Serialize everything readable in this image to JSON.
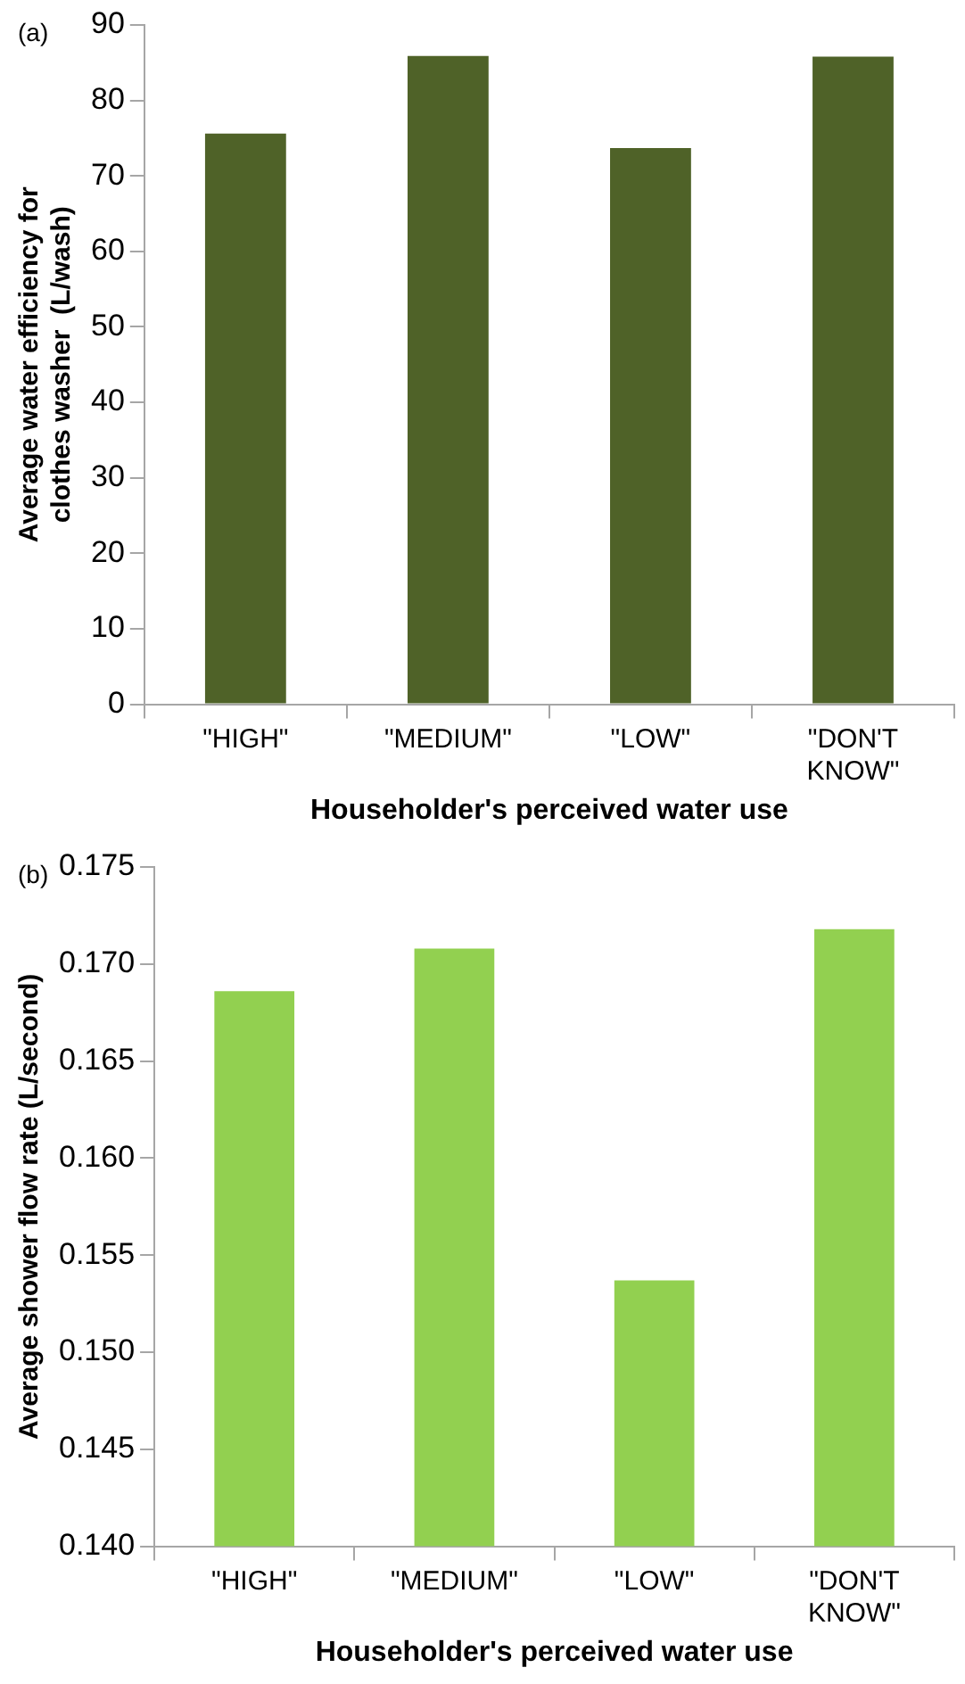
{
  "chart_data": [
    {
      "type": "bar",
      "categories": [
        "\"HIGH\"",
        "\"MEDIUM\"",
        "\"LOW\"",
        "\"DON'T KNOW\""
      ],
      "values": [
        75.6,
        85.9,
        73.7,
        85.8
      ],
      "color": "#4f6228",
      "ylim": [
        0,
        90
      ],
      "yticks": [
        0,
        10,
        20,
        30,
        40,
        50,
        60,
        70,
        80,
        90
      ],
      "xlabel": "Householder's perceived water use",
      "ylabel": "Average water efficiency for clothes washer  (L/wash)",
      "annotations": [
        "(a)"
      ],
      "grid": false,
      "legend": false
    },
    {
      "type": "bar",
      "categories": [
        "\"HIGH\"",
        "\"MEDIUM\"",
        "\"LOW\"",
        "\"DON'T KNOW\""
      ],
      "values": [
        0.1686,
        0.1708,
        0.1537,
        0.1718
      ],
      "color": "#92d050",
      "ylim": [
        0.14,
        0.175
      ],
      "yticks": [
        {
          "value": 0.14,
          "label": "0.140"
        },
        {
          "value": 0.145,
          "label": "0.145"
        },
        {
          "value": 0.15,
          "label": "0.150"
        },
        {
          "value": 0.155,
          "label": "0.155"
        },
        {
          "value": 0.16,
          "label": "0.160"
        },
        {
          "value": 0.165,
          "label": "0.165"
        },
        {
          "value": 0.17,
          "label": "0.170"
        },
        {
          "value": 0.175,
          "label": "0.175"
        }
      ],
      "xlabel": "Householder's perceived water use",
      "ylabel": "Average shower flow rate (L/second)",
      "annotations": [
        "(b)"
      ],
      "grid": false,
      "legend": false
    }
  ]
}
